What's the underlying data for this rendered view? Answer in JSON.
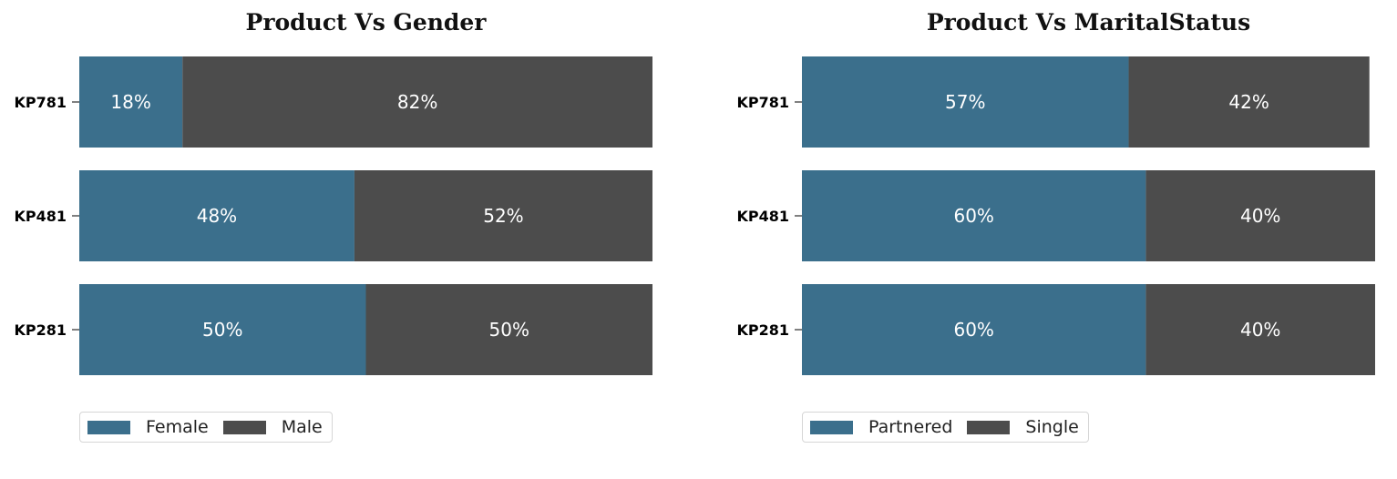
{
  "colors": {
    "first": "#3b6f8c",
    "second": "#4c4c4c",
    "label_text": "#ffffff"
  },
  "chart_data": [
    {
      "type": "bar",
      "orientation": "horizontal",
      "stacked": true,
      "title": "Product Vs Gender",
      "categories": [
        "KP781",
        "KP481",
        "KP281"
      ],
      "series": [
        {
          "name": "Female",
          "values": [
            18,
            48,
            50
          ],
          "labels": [
            "18%",
            "48%",
            "50%"
          ]
        },
        {
          "name": "Male",
          "values": [
            82,
            52,
            50
          ],
          "labels": [
            "82%",
            "52%",
            "50%"
          ]
        }
      ],
      "legend": "bottom-left"
    },
    {
      "type": "bar",
      "orientation": "horizontal",
      "stacked": true,
      "title": "Product Vs MaritalStatus",
      "categories": [
        "KP781",
        "KP481",
        "KP281"
      ],
      "series": [
        {
          "name": "Partnered",
          "values": [
            57,
            60,
            60
          ],
          "labels": [
            "57%",
            "60%",
            "60%"
          ]
        },
        {
          "name": "Single",
          "values": [
            42,
            40,
            40
          ],
          "labels": [
            "42%",
            "40%",
            "40%"
          ]
        }
      ],
      "legend": "bottom-left"
    }
  ]
}
